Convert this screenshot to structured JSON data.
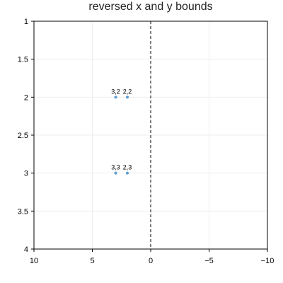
{
  "chart_data": {
    "type": "scatter",
    "title": "reversed x and y bounds",
    "xlabel": "",
    "ylabel": "",
    "xlim": [
      10,
      -10
    ],
    "ylim": [
      4,
      1
    ],
    "x_reversed": true,
    "y_reversed": true,
    "x_ticks": [
      10,
      5,
      0,
      -5,
      -10
    ],
    "x_tick_labels": [
      "10",
      "5",
      "0",
      "−5",
      "−10"
    ],
    "y_ticks": [
      1,
      1.5,
      2,
      2.5,
      3,
      3.5,
      4
    ],
    "y_tick_labels": [
      "1",
      "1.5",
      "2",
      "2.5",
      "3",
      "3.5",
      "4"
    ],
    "grid": true,
    "reference_line": {
      "axis": "x",
      "value": 0,
      "style": "dashed"
    },
    "series": [
      {
        "points": [
          {
            "x": 3,
            "y": 2,
            "label": "3,2"
          },
          {
            "x": 2,
            "y": 2,
            "label": "2,2"
          },
          {
            "x": 3,
            "y": 3,
            "label": "3,3"
          },
          {
            "x": 2,
            "y": 3,
            "label": "2,3"
          }
        ]
      }
    ],
    "colors": {
      "marker": "#5b9bd5",
      "grid": "#eeeeee",
      "axis": "#000000",
      "reference_line": "#000000"
    }
  }
}
